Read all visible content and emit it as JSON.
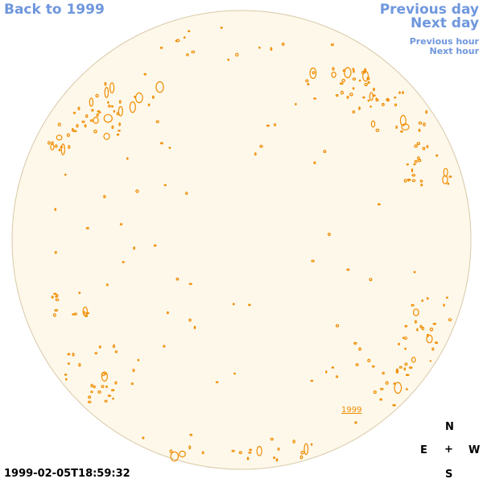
{
  "nav": {
    "back": "Back to 1999",
    "previous_day": "Previous day",
    "next_day": "Next day",
    "previous_hour": "Previous hour",
    "next_hour": "Next hour"
  },
  "disk": {
    "label": "1999",
    "fill_color": "#fdf8ea",
    "edge_color": "#d9c9a8",
    "contour_color": "#f08c00"
  },
  "compass": {
    "north": "N",
    "south": "S",
    "east": "E",
    "west": "W",
    "center": "+"
  },
  "timestamp": "1999-02-05T18:59:32"
}
